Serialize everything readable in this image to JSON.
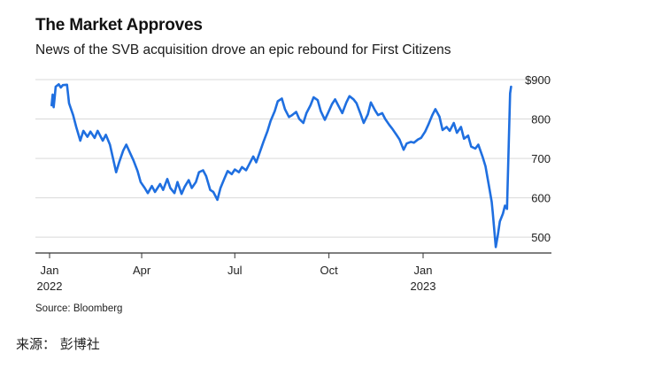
{
  "header": {
    "title": "The Market Approves",
    "subtitle": "News of the SVB acquisition drove an epic rebound for First Citizens"
  },
  "footer": {
    "source": "Source: Bloomberg"
  },
  "caption": "来源： 彭博社",
  "colors": {
    "line": "#1f6fe0",
    "grid": "#d9d9d9",
    "axis": "#333333"
  },
  "chart_data": {
    "type": "line",
    "title": "The Market Approves",
    "subtitle": "News of the SVB acquisition drove an epic rebound for First Citizens",
    "xlabel": "",
    "ylabel": "",
    "ylim": [
      460,
      900
    ],
    "yticks": [
      {
        "value": 900,
        "label": "$900"
      },
      {
        "value": 800,
        "label": "800"
      },
      {
        "value": 700,
        "label": "700"
      },
      {
        "value": 600,
        "label": "600"
      },
      {
        "value": 500,
        "label": "500"
      }
    ],
    "xticks": [
      {
        "x": "2022-01-01",
        "label": "Jan",
        "sublabel": "2022"
      },
      {
        "x": "2022-04-01",
        "label": "Apr",
        "sublabel": ""
      },
      {
        "x": "2022-07-01",
        "label": "Jul",
        "sublabel": ""
      },
      {
        "x": "2022-10-01",
        "label": "Oct",
        "sublabel": ""
      },
      {
        "x": "2023-01-01",
        "label": "Jan",
        "sublabel": "2023"
      }
    ],
    "grid": true,
    "legend": "none",
    "series": [
      {
        "points": [
          [
            "2022-01-03",
            835
          ],
          [
            "2022-01-04",
            862
          ],
          [
            "2022-01-05",
            830
          ],
          [
            "2022-01-06",
            855
          ],
          [
            "2022-01-07",
            882
          ],
          [
            "2022-01-10",
            888
          ],
          [
            "2022-01-12",
            880
          ],
          [
            "2022-01-14",
            886
          ],
          [
            "2022-01-18",
            887
          ],
          [
            "2022-01-20",
            840
          ],
          [
            "2022-01-24",
            810
          ],
          [
            "2022-01-27",
            780
          ],
          [
            "2022-01-31",
            745
          ],
          [
            "2022-02-03",
            770
          ],
          [
            "2022-02-07",
            755
          ],
          [
            "2022-02-10",
            768
          ],
          [
            "2022-02-14",
            752
          ],
          [
            "2022-02-17",
            770
          ],
          [
            "2022-02-22",
            745
          ],
          [
            "2022-02-25",
            760
          ],
          [
            "2022-03-01",
            735
          ],
          [
            "2022-03-04",
            700
          ],
          [
            "2022-03-07",
            665
          ],
          [
            "2022-03-10",
            690
          ],
          [
            "2022-03-14",
            720
          ],
          [
            "2022-03-17",
            735
          ],
          [
            "2022-03-21",
            712
          ],
          [
            "2022-03-24",
            695
          ],
          [
            "2022-03-28",
            668
          ],
          [
            "2022-03-31",
            640
          ],
          [
            "2022-04-04",
            625
          ],
          [
            "2022-04-07",
            612
          ],
          [
            "2022-04-11",
            630
          ],
          [
            "2022-04-14",
            615
          ],
          [
            "2022-04-19",
            635
          ],
          [
            "2022-04-22",
            620
          ],
          [
            "2022-04-26",
            648
          ],
          [
            "2022-04-29",
            625
          ],
          [
            "2022-05-03",
            612
          ],
          [
            "2022-05-06",
            640
          ],
          [
            "2022-05-10",
            610
          ],
          [
            "2022-05-13",
            628
          ],
          [
            "2022-05-17",
            645
          ],
          [
            "2022-05-20",
            625
          ],
          [
            "2022-05-24",
            640
          ],
          [
            "2022-05-27",
            665
          ],
          [
            "2022-05-31",
            670
          ],
          [
            "2022-06-03",
            655
          ],
          [
            "2022-06-07",
            620
          ],
          [
            "2022-06-10",
            615
          ],
          [
            "2022-06-14",
            595
          ],
          [
            "2022-06-17",
            625
          ],
          [
            "2022-06-21",
            650
          ],
          [
            "2022-06-24",
            668
          ],
          [
            "2022-06-28",
            660
          ],
          [
            "2022-07-01",
            672
          ],
          [
            "2022-07-05",
            665
          ],
          [
            "2022-07-08",
            678
          ],
          [
            "2022-07-12",
            670
          ],
          [
            "2022-07-15",
            685
          ],
          [
            "2022-07-19",
            705
          ],
          [
            "2022-07-22",
            690
          ],
          [
            "2022-07-26",
            720
          ],
          [
            "2022-07-29",
            742
          ],
          [
            "2022-08-02",
            770
          ],
          [
            "2022-08-05",
            795
          ],
          [
            "2022-08-09",
            820
          ],
          [
            "2022-08-12",
            845
          ],
          [
            "2022-08-16",
            852
          ],
          [
            "2022-08-19",
            825
          ],
          [
            "2022-08-23",
            805
          ],
          [
            "2022-08-26",
            810
          ],
          [
            "2022-08-30",
            818
          ],
          [
            "2022-09-02",
            800
          ],
          [
            "2022-09-06",
            790
          ],
          [
            "2022-09-09",
            815
          ],
          [
            "2022-09-13",
            835
          ],
          [
            "2022-09-16",
            855
          ],
          [
            "2022-09-20",
            848
          ],
          [
            "2022-09-23",
            820
          ],
          [
            "2022-09-27",
            798
          ],
          [
            "2022-09-30",
            815
          ],
          [
            "2022-10-04",
            838
          ],
          [
            "2022-10-07",
            850
          ],
          [
            "2022-10-11",
            830
          ],
          [
            "2022-10-14",
            815
          ],
          [
            "2022-10-18",
            842
          ],
          [
            "2022-10-21",
            858
          ],
          [
            "2022-10-25",
            850
          ],
          [
            "2022-10-28",
            840
          ],
          [
            "2022-11-01",
            812
          ],
          [
            "2022-11-04",
            790
          ],
          [
            "2022-11-08",
            812
          ],
          [
            "2022-11-11",
            842
          ],
          [
            "2022-11-15",
            822
          ],
          [
            "2022-11-18",
            810
          ],
          [
            "2022-11-22",
            815
          ],
          [
            "2022-11-25",
            800
          ],
          [
            "2022-11-29",
            785
          ],
          [
            "2022-12-02",
            775
          ],
          [
            "2022-12-06",
            760
          ],
          [
            "2022-12-09",
            748
          ],
          [
            "2022-12-13",
            722
          ],
          [
            "2022-12-16",
            738
          ],
          [
            "2022-12-20",
            742
          ],
          [
            "2022-12-23",
            740
          ],
          [
            "2022-12-27",
            748
          ],
          [
            "2022-12-30",
            752
          ],
          [
            "2023-01-03",
            768
          ],
          [
            "2023-01-06",
            785
          ],
          [
            "2023-01-10",
            810
          ],
          [
            "2023-01-13",
            825
          ],
          [
            "2023-01-17",
            806
          ],
          [
            "2023-01-20",
            772
          ],
          [
            "2023-01-24",
            780
          ],
          [
            "2023-01-27",
            770
          ],
          [
            "2023-01-31",
            790
          ],
          [
            "2023-02-03",
            765
          ],
          [
            "2023-02-07",
            780
          ],
          [
            "2023-02-10",
            750
          ],
          [
            "2023-02-14",
            758
          ],
          [
            "2023-02-17",
            730
          ],
          [
            "2023-02-21",
            725
          ],
          [
            "2023-02-24",
            735
          ],
          [
            "2023-02-28",
            705
          ],
          [
            "2023-03-03",
            680
          ],
          [
            "2023-03-07",
            620
          ],
          [
            "2023-03-09",
            590
          ],
          [
            "2023-03-10",
            565
          ],
          [
            "2023-03-13",
            475
          ],
          [
            "2023-03-15",
            505
          ],
          [
            "2023-03-17",
            540
          ],
          [
            "2023-03-20",
            560
          ],
          [
            "2023-03-22",
            580
          ],
          [
            "2023-03-24",
            572
          ],
          [
            "2023-03-27",
            865
          ],
          [
            "2023-03-28",
            882
          ]
        ]
      }
    ]
  }
}
